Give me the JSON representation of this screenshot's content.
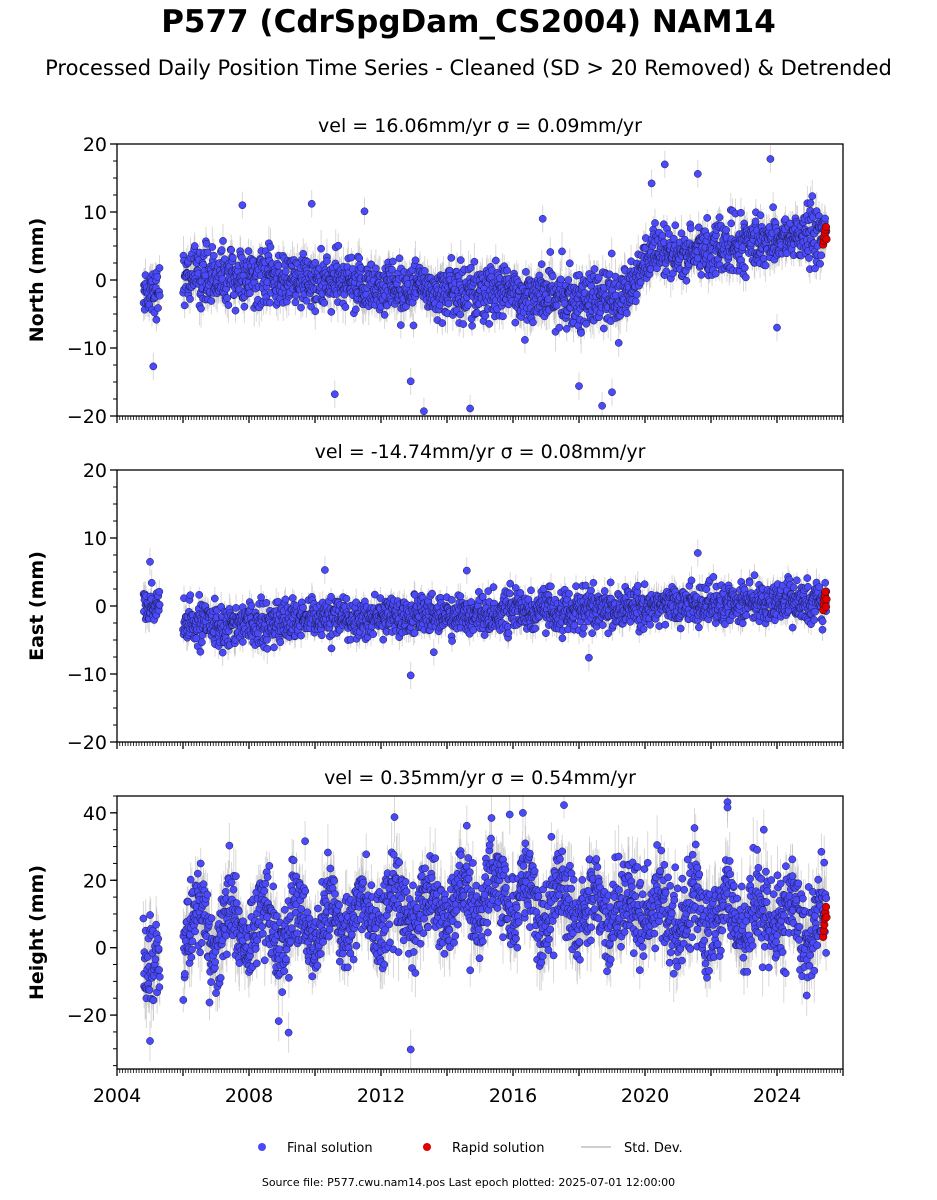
{
  "title": "P577 (CdrSpgDam_CS2004) NAM14",
  "subtitle": "Processed Daily Position Time Series - Cleaned (SD > 20 Removed) & Detrended",
  "footer": "Source file: P577.cwu.nam14.pos  Last epoch plotted: 2025-07-01 12:00:00",
  "colors": {
    "final": "#4a4afa",
    "rapid": "#e00000",
    "stddev": "#b8b8b8",
    "edge": "#1a1a4a"
  },
  "legend": {
    "final": "Final solution",
    "rapid": "Rapid solution",
    "stddev": "Std. Dev."
  },
  "chart_data": [
    {
      "type": "scatter",
      "name": "north",
      "title": "vel = 16.06mm/yr   σ = 0.09mm/yr",
      "ylabel": "North (mm)",
      "xlim": [
        2004.0,
        2026.0
      ],
      "ylim": [
        -20,
        20
      ],
      "yticks": [
        -20,
        -10,
        0,
        10,
        20
      ],
      "ytick_labels": [
        "−20",
        "−10",
        "0",
        "10",
        "20"
      ],
      "segments": [
        {
          "from": 2004.8,
          "to": 2005.3,
          "level": -1.5,
          "noise": 1.8
        },
        {
          "from": 2006.0,
          "to": 2019.3,
          "level_start": 0.8,
          "level_end": -3.0,
          "noise": 2.0
        },
        {
          "from": 2019.3,
          "to": 2020.0,
          "level_start": -3.0,
          "level_end": 3.0,
          "noise": 2.0
        },
        {
          "from": 2020.0,
          "to": 2025.5,
          "level_start": 3.0,
          "level_end": 7.0,
          "noise": 1.9
        }
      ],
      "outliers": [
        {
          "x": 2005.1,
          "y": -12.7
        },
        {
          "x": 2007.8,
          "y": 11.0
        },
        {
          "x": 2009.9,
          "y": 11.2
        },
        {
          "x": 2010.6,
          "y": -16.8
        },
        {
          "x": 2011.5,
          "y": 10.1
        },
        {
          "x": 2012.9,
          "y": -14.9
        },
        {
          "x": 2013.3,
          "y": -19.3
        },
        {
          "x": 2014.7,
          "y": -18.9
        },
        {
          "x": 2016.9,
          "y": 9.0
        },
        {
          "x": 2018.0,
          "y": -15.6
        },
        {
          "x": 2018.7,
          "y": -18.5
        },
        {
          "x": 2019.0,
          "y": -16.5
        },
        {
          "x": 2020.6,
          "y": 17.0
        },
        {
          "x": 2021.6,
          "y": 15.6
        },
        {
          "x": 2023.8,
          "y": 17.8
        },
        {
          "x": 2024.0,
          "y": -7.0
        },
        {
          "x": 2020.2,
          "y": 14.2
        }
      ],
      "rapid": {
        "from": 2025.4,
        "to": 2025.5,
        "ys": [
          5.2,
          5.8,
          6.3,
          6.9,
          7.4,
          7.8,
          6.0
        ]
      }
    },
    {
      "type": "scatter",
      "name": "east",
      "title": "vel = -14.74mm/yr   σ = 0.08mm/yr",
      "ylabel": "East (mm)",
      "xlim": [
        2004.0,
        2026.0
      ],
      "ylim": [
        -20,
        20
      ],
      "yticks": [
        -20,
        -10,
        0,
        10,
        20
      ],
      "ytick_labels": [
        "−20",
        "−10",
        "0",
        "10",
        "20"
      ],
      "segments": [
        {
          "from": 2004.8,
          "to": 2005.3,
          "level": 0.0,
          "noise": 1.4
        },
        {
          "from": 2006.0,
          "to": 2010.0,
          "level_start": -2.8,
          "level_end": -2.2,
          "noise": 1.5
        },
        {
          "from": 2010.0,
          "to": 2020.0,
          "level_start": -2.0,
          "level_end": -0.2,
          "noise": 1.4
        },
        {
          "from": 2020.0,
          "to": 2025.5,
          "level_start": 0.2,
          "level_end": 0.6,
          "noise": 1.4
        }
      ],
      "outliers": [
        {
          "x": 2005.0,
          "y": 6.5
        },
        {
          "x": 2012.9,
          "y": -10.2
        },
        {
          "x": 2018.3,
          "y": -7.6
        },
        {
          "x": 2021.6,
          "y": 7.8
        },
        {
          "x": 2010.3,
          "y": 5.3
        },
        {
          "x": 2014.6,
          "y": 5.2
        },
        {
          "x": 2013.6,
          "y": -6.8
        }
      ],
      "rapid": {
        "from": 2025.4,
        "to": 2025.5,
        "ys": [
          -0.6,
          0.3,
          0.9,
          1.5,
          2.1,
          -0.1,
          1.0
        ]
      }
    },
    {
      "type": "scatter",
      "name": "height",
      "title": "vel = 0.35mm/yr   σ = 0.54mm/yr",
      "ylabel": "Height (mm)",
      "xlim": [
        2004.0,
        2026.0
      ],
      "ylim": [
        -36,
        45
      ],
      "yticks": [
        -20,
        0,
        20,
        40
      ],
      "ytick_labels": [
        "−20",
        "0",
        "20",
        "40"
      ],
      "xticks": [
        2004,
        2008,
        2012,
        2016,
        2020,
        2024
      ],
      "segments": [
        {
          "from": 2004.8,
          "to": 2005.3,
          "level": -4.0,
          "noise": 6.5
        },
        {
          "from": 2006.0,
          "to": 2010.0,
          "level_start": 5.0,
          "level_end": 7.0,
          "noise": 6.0,
          "seasonal": 6.0
        },
        {
          "from": 2010.0,
          "to": 2016.5,
          "level_start": 8.0,
          "level_end": 16.0,
          "noise": 6.0,
          "seasonal": 5.0
        },
        {
          "from": 2016.5,
          "to": 2025.5,
          "level_start": 14.0,
          "level_end": 7.0,
          "noise": 6.5,
          "seasonal": 5.5
        }
      ],
      "outliers": [
        {
          "x": 2005.0,
          "y": -27.7
        },
        {
          "x": 2012.9,
          "y": -30.2
        },
        {
          "x": 2022.5,
          "y": 43.2
        },
        {
          "x": 2022.5,
          "y": 41.6
        },
        {
          "x": 2008.9,
          "y": -21.8
        },
        {
          "x": 2009.2,
          "y": -25.2
        },
        {
          "x": 2009.7,
          "y": 31.6
        },
        {
          "x": 2014.6,
          "y": 36.2
        },
        {
          "x": 2015.9,
          "y": 39.5
        },
        {
          "x": 2016.3,
          "y": 40.0
        },
        {
          "x": 2021.5,
          "y": 35.5
        },
        {
          "x": 2023.6,
          "y": 35.0
        },
        {
          "x": 2024.9,
          "y": -14.2
        },
        {
          "x": 2012.1,
          "y": -5.0
        }
      ],
      "rapid": {
        "from": 2025.4,
        "to": 2025.5,
        "ys": [
          3.2,
          5.0,
          6.8,
          8.6,
          10.4,
          12.1,
          9.0
        ]
      }
    }
  ]
}
